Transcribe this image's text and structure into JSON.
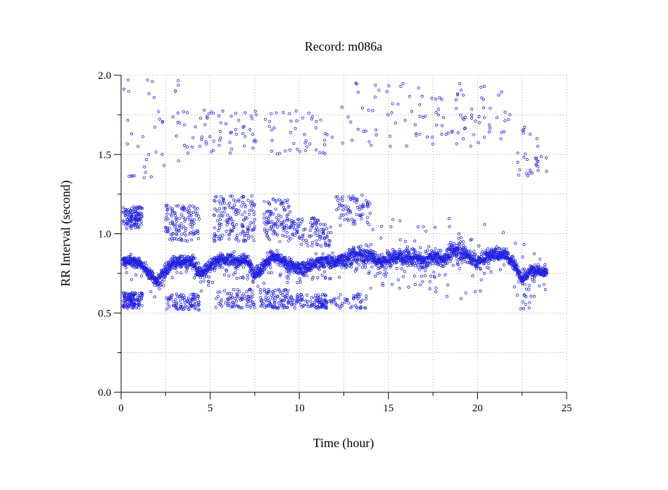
{
  "chart_data": {
    "type": "scatter",
    "title": "Record:  m086a",
    "xlabel": "Time (hour)",
    "ylabel": "RR Interval (second)",
    "xlim": [
      0,
      25
    ],
    "ylim": [
      0,
      2.0
    ],
    "x_ticks": [
      0,
      5,
      10,
      15,
      20,
      25
    ],
    "x_tick_labels": [
      "0",
      "5",
      "10",
      "15",
      "20",
      "25"
    ],
    "y_ticks": [
      0.0,
      0.5,
      1.0,
      1.5,
      2.0
    ],
    "y_tick_labels": [
      "0.0",
      "0.5",
      "1.0",
      "1.5",
      "2.0"
    ],
    "grid": true,
    "marker": "open-circle",
    "point_color": "#1f1fe0",
    "recording_span_hours": [
      0.1,
      23.9
    ],
    "main_band": [
      [
        0.0,
        0.82,
        0.04
      ],
      [
        0.5,
        0.83,
        0.04
      ],
      [
        1.0,
        0.82,
        0.04
      ],
      [
        1.5,
        0.76,
        0.04
      ],
      [
        2.0,
        0.7,
        0.04
      ],
      [
        2.4,
        0.76,
        0.05
      ],
      [
        3.0,
        0.83,
        0.05
      ],
      [
        3.5,
        0.82,
        0.05
      ],
      [
        4.0,
        0.82,
        0.05
      ],
      [
        4.5,
        0.74,
        0.05
      ],
      [
        5.0,
        0.8,
        0.05
      ],
      [
        5.5,
        0.84,
        0.05
      ],
      [
        6.0,
        0.84,
        0.05
      ],
      [
        6.5,
        0.83,
        0.05
      ],
      [
        7.0,
        0.84,
        0.05
      ],
      [
        7.5,
        0.75,
        0.06
      ],
      [
        8.0,
        0.8,
        0.06
      ],
      [
        8.5,
        0.86,
        0.05
      ],
      [
        9.0,
        0.83,
        0.05
      ],
      [
        9.5,
        0.8,
        0.05
      ],
      [
        10.0,
        0.78,
        0.05
      ],
      [
        10.5,
        0.79,
        0.05
      ],
      [
        11.0,
        0.82,
        0.05
      ],
      [
        11.5,
        0.83,
        0.05
      ],
      [
        12.0,
        0.82,
        0.05
      ],
      [
        12.5,
        0.84,
        0.06
      ],
      [
        13.0,
        0.86,
        0.06
      ],
      [
        13.5,
        0.87,
        0.06
      ],
      [
        14.0,
        0.86,
        0.06
      ],
      [
        14.5,
        0.82,
        0.06
      ],
      [
        15.0,
        0.84,
        0.06
      ],
      [
        15.5,
        0.86,
        0.06
      ],
      [
        16.0,
        0.85,
        0.06
      ],
      [
        16.5,
        0.85,
        0.06
      ],
      [
        17.0,
        0.83,
        0.06
      ],
      [
        17.5,
        0.86,
        0.06
      ],
      [
        18.0,
        0.83,
        0.06
      ],
      [
        18.5,
        0.88,
        0.06
      ],
      [
        19.0,
        0.9,
        0.06
      ],
      [
        19.5,
        0.86,
        0.06
      ],
      [
        20.0,
        0.82,
        0.06
      ],
      [
        20.5,
        0.86,
        0.05
      ],
      [
        21.0,
        0.87,
        0.05
      ],
      [
        21.5,
        0.88,
        0.05
      ],
      [
        22.0,
        0.82,
        0.05
      ],
      [
        22.5,
        0.71,
        0.05
      ],
      [
        23.0,
        0.77,
        0.04
      ],
      [
        23.5,
        0.77,
        0.04
      ],
      [
        23.9,
        0.76,
        0.04
      ]
    ],
    "scatter_regions": [
      {
        "x": [
          0.1,
          1.2
        ],
        "y": [
          0.53,
          0.63
        ],
        "count": 120
      },
      {
        "x": [
          0.1,
          1.2
        ],
        "y": [
          1.03,
          1.17
        ],
        "count": 110
      },
      {
        "x": [
          2.5,
          4.4
        ],
        "y": [
          0.52,
          0.62
        ],
        "count": 90
      },
      {
        "x": [
          2.5,
          4.4
        ],
        "y": [
          0.95,
          1.18
        ],
        "count": 120
      },
      {
        "x": [
          5.2,
          7.5
        ],
        "y": [
          0.53,
          0.65
        ],
        "count": 80
      },
      {
        "x": [
          5.2,
          7.5
        ],
        "y": [
          0.95,
          1.24
        ],
        "count": 150
      },
      {
        "x": [
          7.8,
          9.5
        ],
        "y": [
          0.53,
          0.65
        ],
        "count": 90
      },
      {
        "x": [
          8.0,
          9.5
        ],
        "y": [
          0.95,
          1.22
        ],
        "count": 100
      },
      {
        "x": [
          9.5,
          11.5
        ],
        "y": [
          0.53,
          0.62
        ],
        "count": 80
      },
      {
        "x": [
          9.5,
          11.8
        ],
        "y": [
          0.92,
          1.1
        ],
        "count": 100
      },
      {
        "x": [
          11.0,
          13.8
        ],
        "y": [
          0.53,
          0.62
        ],
        "count": 70
      },
      {
        "x": [
          12.0,
          14.0
        ],
        "y": [
          1.05,
          1.25
        ],
        "count": 70
      },
      {
        "x": [
          0.1,
          3.5
        ],
        "y": [
          1.35,
          1.98
        ],
        "count": 40
      },
      {
        "x": [
          3.5,
          8.0
        ],
        "y": [
          1.5,
          1.78
        ],
        "count": 60
      },
      {
        "x": [
          8.0,
          12.0
        ],
        "y": [
          1.5,
          1.78
        ],
        "count": 45
      },
      {
        "x": [
          12.0,
          22.0
        ],
        "y": [
          1.55,
          1.95
        ],
        "count": 110
      },
      {
        "x": [
          22.0,
          23.9
        ],
        "y": [
          1.35,
          1.68
        ],
        "count": 30
      },
      {
        "x": [
          14.0,
          21.5
        ],
        "y": [
          0.58,
          1.1
        ],
        "count": 70
      },
      {
        "x": [
          22.0,
          23.8
        ],
        "y": [
          0.5,
          0.95
        ],
        "count": 30
      }
    ]
  }
}
